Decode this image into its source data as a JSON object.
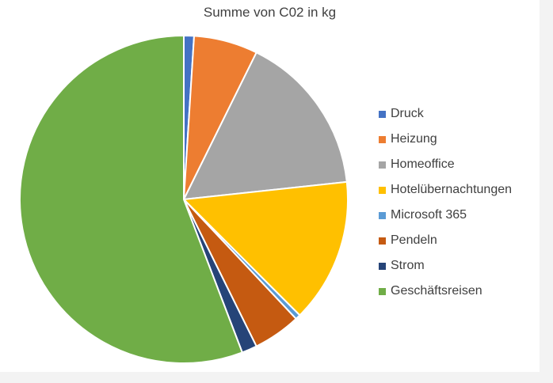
{
  "chart_data": {
    "type": "pie",
    "title": "Summe von C02 in kg",
    "start_angle_deg": 0,
    "direction": "clockwise",
    "legend_position": "right",
    "slices": [
      {
        "label": "Druck",
        "value": 1.0,
        "color": "#4472C4"
      },
      {
        "label": "Heizung",
        "value": 6.3,
        "color": "#ED7D31"
      },
      {
        "label": "Homeoffice",
        "value": 16.0,
        "color": "#A5A5A5"
      },
      {
        "label": "Hotelübernachtungen",
        "value": 14.2,
        "color": "#FFC000"
      },
      {
        "label": "Microsoft 365",
        "value": 0.5,
        "color": "#5B9BD5"
      },
      {
        "label": "Pendeln",
        "value": 4.7,
        "color": "#C55A11"
      },
      {
        "label": "Strom",
        "value": 1.5,
        "color": "#264478"
      },
      {
        "label": "Geschäftsreisen",
        "value": 55.8,
        "color": "#70AD47"
      }
    ]
  }
}
